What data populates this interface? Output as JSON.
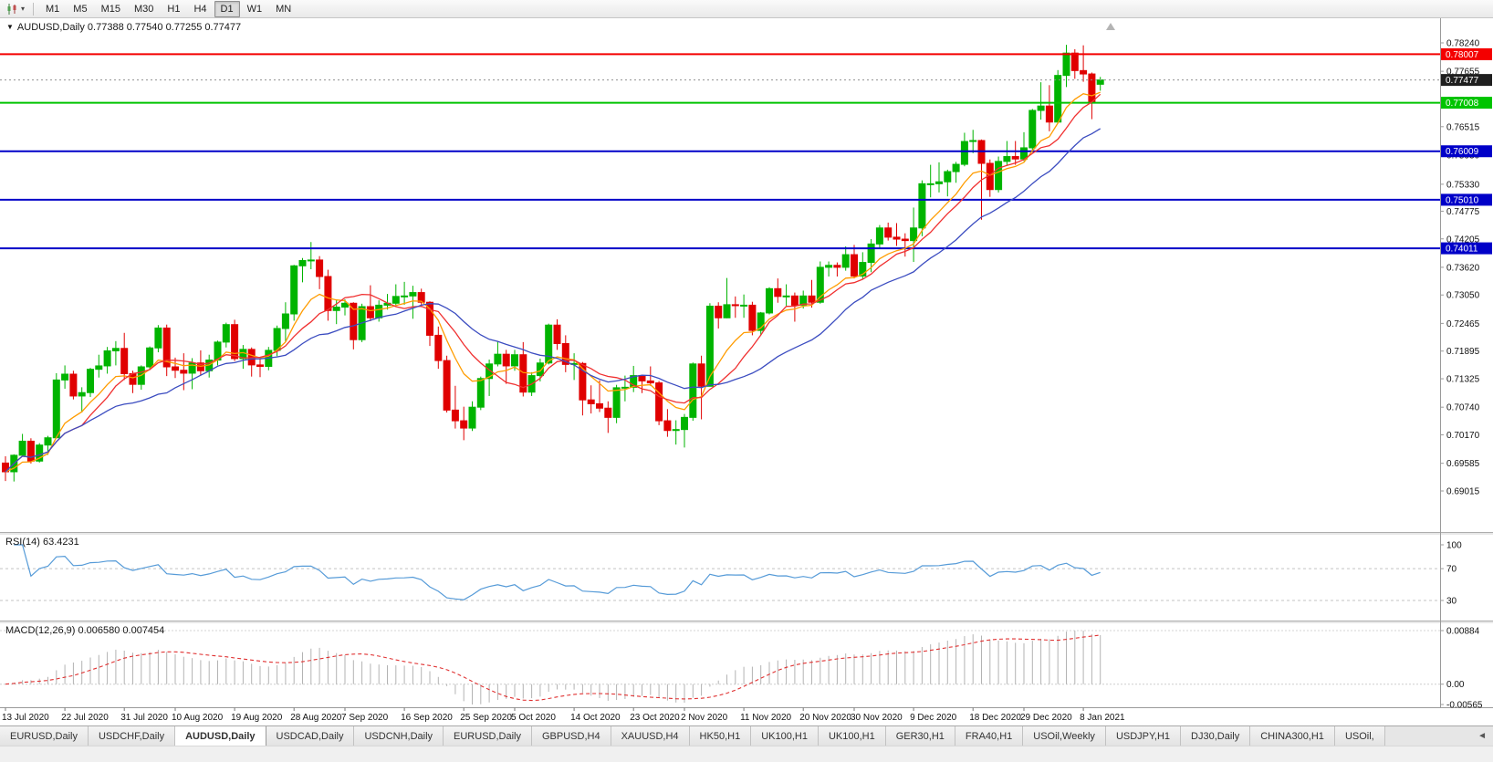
{
  "toolbar": {
    "timeframes": [
      "M1",
      "M5",
      "M15",
      "M30",
      "H1",
      "H4",
      "D1",
      "W1",
      "MN"
    ],
    "active_timeframe": "D1",
    "chart_type_icon": "candlestick-chart-icon",
    "dropdown_icon": "▾"
  },
  "chart": {
    "symbol": "AUDUSD",
    "period": "Daily",
    "menu_icon": "▼",
    "title_line": "AUDUSD,Daily  0.77388 0.77540 0.77255 0.77477",
    "open": "0.77388",
    "high": "0.77540",
    "low": "0.77255",
    "close": "0.77477"
  },
  "main_pane": {
    "axis_labels": [
      "0.78240",
      "0.77655",
      "0.77070",
      "0.76515",
      "0.75930",
      "0.75330",
      "0.74775",
      "0.74205",
      "0.73620",
      "0.73050",
      "0.72465",
      "0.71895",
      "0.71325",
      "0.70740",
      "0.70170",
      "0.69585",
      "0.69015"
    ],
    "hlines": [
      {
        "price": 0.78007,
        "label": "0.78007",
        "color": "#f40000"
      },
      {
        "price": 0.77008,
        "label": "0.77008",
        "color": "#00c400"
      },
      {
        "price": 0.76009,
        "label": "0.76009",
        "color": "#0000c8"
      },
      {
        "price": 0.7501,
        "label": "0.75010",
        "color": "#0000c8"
      },
      {
        "price": 0.74011,
        "label": "0.74011",
        "color": "#0000c8"
      }
    ],
    "bid": {
      "price": 0.77477,
      "label": "0.77477",
      "bg": "#1f1f1f"
    }
  },
  "rsi": {
    "label": "RSI(14) 63.4231",
    "period": 14,
    "value": "63.4231",
    "axis_labels": [
      "100",
      "70",
      "30"
    ],
    "levels": [
      70,
      30
    ],
    "line_color": "#569bd8"
  },
  "macd": {
    "label": "MACD(12,26,9) 0.006580 0.007454",
    "fast": 12,
    "slow": 26,
    "signal_period": 9,
    "main_value": "0.006580",
    "signal_value": "0.007454",
    "axis_max": "0.00884",
    "axis_zero": "0.00",
    "axis_min": "-0.00565",
    "histogram_color": "#b3b3b3",
    "signal_color": "#e03131"
  },
  "x_axis": {
    "ticks": [
      {
        "label": "13 Jul 2020",
        "index": 0
      },
      {
        "label": "22 Jul 2020",
        "index": 7
      },
      {
        "label": "31 Jul 2020",
        "index": 14
      },
      {
        "label": "10 Aug 2020",
        "index": 20
      },
      {
        "label": "19 Aug 2020",
        "index": 27
      },
      {
        "label": "28 Aug 2020",
        "index": 34
      },
      {
        "label": "7 Sep 2020",
        "index": 40
      },
      {
        "label": "16 Sep 2020",
        "index": 47
      },
      {
        "label": "25 Sep 2020",
        "index": 54
      },
      {
        "label": "5 Oct 2020",
        "index": 60
      },
      {
        "label": "14 Oct 2020",
        "index": 67
      },
      {
        "label": "23 Oct 2020",
        "index": 74
      },
      {
        "label": "2 Nov 2020",
        "index": 80
      },
      {
        "label": "11 Nov 2020",
        "index": 87
      },
      {
        "label": "20 Nov 2020",
        "index": 94
      },
      {
        "label": "30 Nov 2020",
        "index": 100
      },
      {
        "label": "9 Dec 2020",
        "index": 107
      },
      {
        "label": "18 Dec 2020",
        "index": 114
      },
      {
        "label": "29 Dec 2020",
        "index": 120
      },
      {
        "label": "8 Jan 2021",
        "index": 127
      }
    ]
  },
  "bottom_tabs": {
    "active_index": 2,
    "scroll_icon": "◄",
    "tabs": [
      "EURUSD,Daily",
      "USDCHF,Daily",
      "AUDUSD,Daily",
      "USDCAD,Daily",
      "USDCNH,Daily",
      "EURUSD,Daily",
      "GBPUSD,H4",
      "XAUUSD,H4",
      "HK50,H1",
      "UK100,H1",
      "UK100,H1",
      "GER30,H1",
      "FRA40,H1",
      "USOil,Weekly",
      "USDJPY,H1",
      "DJ30,Daily",
      "CHINA300,H1",
      "USOil,"
    ]
  },
  "chart_data": {
    "type": "candlestick",
    "symbol": "AUDUSD",
    "timeframe": "Daily",
    "x_range": "13 Jul 2020 - 12 Jan 2021",
    "up_color": "#00b400",
    "down_color": "#e00000",
    "ma_overlays": [
      {
        "period": 8,
        "method": "ema",
        "color": "#ff9c00"
      },
      {
        "period": 10,
        "method": "sma",
        "color": "#f03030"
      },
      {
        "period": 20,
        "method": "sma",
        "color": "#3b4cc0"
      }
    ],
    "candles": [
      [
        0.6959,
        0.6973,
        0.6922,
        0.6941
      ],
      [
        0.6941,
        0.6977,
        0.6921,
        0.6975
      ],
      [
        0.6975,
        0.7019,
        0.6972,
        0.7004
      ],
      [
        0.7004,
        0.701,
        0.6958,
        0.6963
      ],
      [
        0.6963,
        0.7,
        0.696,
        0.6996
      ],
      [
        0.6996,
        0.7015,
        0.6976,
        0.7011
      ],
      [
        0.7011,
        0.7144,
        0.701,
        0.713
      ],
      [
        0.713,
        0.716,
        0.7112,
        0.7142
      ],
      [
        0.7142,
        0.7149,
        0.709,
        0.7097
      ],
      [
        0.7097,
        0.7115,
        0.7063,
        0.7104
      ],
      [
        0.7104,
        0.7155,
        0.7095,
        0.7152
      ],
      [
        0.7152,
        0.7182,
        0.7135,
        0.7159
      ],
      [
        0.7159,
        0.7198,
        0.7143,
        0.719
      ],
      [
        0.719,
        0.721,
        0.716,
        0.7195
      ],
      [
        0.7195,
        0.7227,
        0.713,
        0.7143
      ],
      [
        0.7143,
        0.7149,
        0.7103,
        0.7121
      ],
      [
        0.7121,
        0.716,
        0.711,
        0.7157
      ],
      [
        0.7157,
        0.7199,
        0.7151,
        0.7196
      ],
      [
        0.7196,
        0.7243,
        0.7187,
        0.7237
      ],
      [
        0.7237,
        0.7244,
        0.7138,
        0.7157
      ],
      [
        0.7157,
        0.7176,
        0.7134,
        0.715
      ],
      [
        0.715,
        0.7185,
        0.7109,
        0.7144
      ],
      [
        0.7144,
        0.7175,
        0.7111,
        0.7165
      ],
      [
        0.7165,
        0.7191,
        0.7139,
        0.7149
      ],
      [
        0.7149,
        0.7182,
        0.7135,
        0.7171
      ],
      [
        0.7171,
        0.7211,
        0.716,
        0.7208
      ],
      [
        0.7208,
        0.7248,
        0.7197,
        0.7244
      ],
      [
        0.7244,
        0.7254,
        0.7169,
        0.7174
      ],
      [
        0.7174,
        0.7202,
        0.7153,
        0.7193
      ],
      [
        0.7193,
        0.7197,
        0.7137,
        0.7161
      ],
      [
        0.7161,
        0.7174,
        0.7136,
        0.7158
      ],
      [
        0.7158,
        0.7198,
        0.715,
        0.7191
      ],
      [
        0.7191,
        0.7242,
        0.7179,
        0.7236
      ],
      [
        0.7236,
        0.729,
        0.7208,
        0.7266
      ],
      [
        0.7266,
        0.7367,
        0.7252,
        0.7365
      ],
      [
        0.7365,
        0.7381,
        0.7331,
        0.7376
      ],
      [
        0.7376,
        0.7414,
        0.7358,
        0.7377
      ],
      [
        0.7377,
        0.7385,
        0.7317,
        0.7343
      ],
      [
        0.7343,
        0.7357,
        0.7252,
        0.7273
      ],
      [
        0.7273,
        0.7296,
        0.7245,
        0.728
      ],
      [
        0.728,
        0.7296,
        0.7263,
        0.7288
      ],
      [
        0.7288,
        0.729,
        0.7193,
        0.7213
      ],
      [
        0.7213,
        0.7287,
        0.7208,
        0.7281
      ],
      [
        0.7281,
        0.7325,
        0.7251,
        0.7258
      ],
      [
        0.7258,
        0.7294,
        0.725,
        0.7284
      ],
      [
        0.7284,
        0.7307,
        0.7275,
        0.7288
      ],
      [
        0.7288,
        0.7327,
        0.7284,
        0.7302
      ],
      [
        0.7302,
        0.7332,
        0.7285,
        0.7303
      ],
      [
        0.7303,
        0.7324,
        0.7256,
        0.731
      ],
      [
        0.731,
        0.7318,
        0.728,
        0.729
      ],
      [
        0.729,
        0.7292,
        0.72,
        0.7222
      ],
      [
        0.7222,
        0.724,
        0.7153,
        0.717
      ],
      [
        0.717,
        0.718,
        0.7063,
        0.7068
      ],
      [
        0.7068,
        0.7118,
        0.703,
        0.7046
      ],
      [
        0.7046,
        0.7075,
        0.7006,
        0.7031
      ],
      [
        0.7031,
        0.7086,
        0.7025,
        0.7074
      ],
      [
        0.7074,
        0.7137,
        0.7068,
        0.7133
      ],
      [
        0.7133,
        0.7172,
        0.7097,
        0.7163
      ],
      [
        0.7163,
        0.7209,
        0.7158,
        0.7183
      ],
      [
        0.7183,
        0.7192,
        0.7122,
        0.7159
      ],
      [
        0.7159,
        0.7192,
        0.7149,
        0.7182
      ],
      [
        0.7182,
        0.7208,
        0.7096,
        0.7105
      ],
      [
        0.7105,
        0.7146,
        0.7097,
        0.7139
      ],
      [
        0.7139,
        0.7174,
        0.7127,
        0.7165
      ],
      [
        0.7165,
        0.7246,
        0.7162,
        0.7243
      ],
      [
        0.7243,
        0.7255,
        0.7192,
        0.7205
      ],
      [
        0.7205,
        0.7222,
        0.7146,
        0.7162
      ],
      [
        0.7162,
        0.7185,
        0.713,
        0.7164
      ],
      [
        0.7164,
        0.7167,
        0.7057,
        0.7089
      ],
      [
        0.7089,
        0.7119,
        0.7061,
        0.7081
      ],
      [
        0.7081,
        0.7129,
        0.7064,
        0.7072
      ],
      [
        0.7072,
        0.7086,
        0.7021,
        0.7053
      ],
      [
        0.7053,
        0.712,
        0.7041,
        0.7114
      ],
      [
        0.7114,
        0.7139,
        0.7086,
        0.7115
      ],
      [
        0.7115,
        0.7159,
        0.7105,
        0.7139
      ],
      [
        0.7139,
        0.7141,
        0.7103,
        0.7128
      ],
      [
        0.7128,
        0.7158,
        0.7118,
        0.7124
      ],
      [
        0.7124,
        0.7128,
        0.7037,
        0.7046
      ],
      [
        0.7046,
        0.707,
        0.7013,
        0.7026
      ],
      [
        0.7026,
        0.7047,
        0.6997,
        0.7028
      ],
      [
        0.7028,
        0.706,
        0.6991,
        0.7053
      ],
      [
        0.7053,
        0.7166,
        0.7046,
        0.7163
      ],
      [
        0.7163,
        0.718,
        0.7049,
        0.7117
      ],
      [
        0.7117,
        0.7288,
        0.7117,
        0.7282
      ],
      [
        0.7282,
        0.729,
        0.7236,
        0.7258
      ],
      [
        0.7258,
        0.734,
        0.7257,
        0.7285
      ],
      [
        0.7285,
        0.7302,
        0.7258,
        0.7283
      ],
      [
        0.7283,
        0.7306,
        0.7258,
        0.7284
      ],
      [
        0.7284,
        0.7291,
        0.7222,
        0.7232
      ],
      [
        0.7232,
        0.727,
        0.7222,
        0.7268
      ],
      [
        0.7268,
        0.7321,
        0.7265,
        0.7318
      ],
      [
        0.7318,
        0.7339,
        0.7289,
        0.7302
      ],
      [
        0.7302,
        0.7327,
        0.7283,
        0.7303
      ],
      [
        0.7303,
        0.731,
        0.725,
        0.7284
      ],
      [
        0.7284,
        0.7314,
        0.7277,
        0.7303
      ],
      [
        0.7303,
        0.7336,
        0.7279,
        0.729
      ],
      [
        0.729,
        0.7374,
        0.7287,
        0.7362
      ],
      [
        0.7362,
        0.7374,
        0.7343,
        0.7366
      ],
      [
        0.7366,
        0.7372,
        0.7343,
        0.7362
      ],
      [
        0.7362,
        0.7405,
        0.7355,
        0.7388
      ],
      [
        0.7388,
        0.7408,
        0.7339,
        0.7344
      ],
      [
        0.7344,
        0.7393,
        0.7338,
        0.7372
      ],
      [
        0.7372,
        0.742,
        0.7352,
        0.741
      ],
      [
        0.741,
        0.7449,
        0.7401,
        0.7443
      ],
      [
        0.7443,
        0.7454,
        0.7417,
        0.7424
      ],
      [
        0.7424,
        0.7453,
        0.7406,
        0.742
      ],
      [
        0.742,
        0.7432,
        0.7384,
        0.7417
      ],
      [
        0.7417,
        0.7485,
        0.7373,
        0.7443
      ],
      [
        0.7443,
        0.7541,
        0.7426,
        0.7534
      ],
      [
        0.7534,
        0.7573,
        0.7506,
        0.7534
      ],
      [
        0.7534,
        0.7578,
        0.7516,
        0.7538
      ],
      [
        0.7538,
        0.7563,
        0.7508,
        0.7559
      ],
      [
        0.7559,
        0.7579,
        0.7536,
        0.7574
      ],
      [
        0.7574,
        0.7639,
        0.757,
        0.7621
      ],
      [
        0.7621,
        0.7645,
        0.7597,
        0.7623
      ],
      [
        0.7623,
        0.7625,
        0.746,
        0.7576
      ],
      [
        0.7576,
        0.7584,
        0.7507,
        0.7522
      ],
      [
        0.7522,
        0.759,
        0.7516,
        0.758
      ],
      [
        0.758,
        0.7622,
        0.7571,
        0.759
      ],
      [
        0.759,
        0.7622,
        0.7573,
        0.7585
      ],
      [
        0.7585,
        0.764,
        0.7581,
        0.7608
      ],
      [
        0.7608,
        0.7688,
        0.7599,
        0.7685
      ],
      [
        0.7685,
        0.7743,
        0.7666,
        0.7694
      ],
      [
        0.7694,
        0.7737,
        0.7642,
        0.7661
      ],
      [
        0.7661,
        0.7768,
        0.7659,
        0.7757
      ],
      [
        0.7757,
        0.782,
        0.7733,
        0.7803
      ],
      [
        0.7803,
        0.7811,
        0.775,
        0.7767
      ],
      [
        0.7767,
        0.7819,
        0.7744,
        0.776
      ],
      [
        0.776,
        0.7763,
        0.7667,
        0.77
      ],
      [
        0.77388,
        0.7754,
        0.77255,
        0.77477
      ]
    ]
  }
}
